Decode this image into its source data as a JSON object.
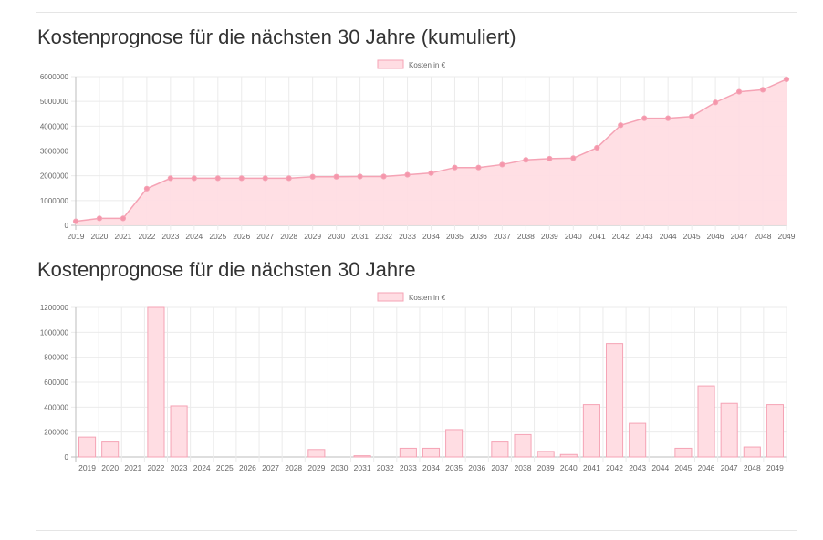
{
  "charts": [
    {
      "title": "Kostenprognose für die nächsten 30 Jahre (kumuliert)",
      "legend_label": "Kosten in €"
    },
    {
      "title": "Kostenprognose für die nächsten 30 Jahre",
      "legend_label": "Kosten in €"
    }
  ],
  "colors": {
    "fill": "#ffdde3",
    "stroke": "#f5a3b5",
    "point": "#f596ab",
    "grid": "#ebebeb",
    "axis": "#bdbdbd",
    "text": "#666666"
  },
  "chart_data": [
    {
      "type": "area",
      "title": "Kostenprognose für die nächsten 30 Jahre (kumuliert)",
      "xlabel": "",
      "ylabel": "",
      "legend": "top-center",
      "grid": true,
      "ylim": [
        0,
        6000000
      ],
      "yticks": [
        0,
        1000000,
        2000000,
        3000000,
        4000000,
        5000000,
        6000000
      ],
      "categories": [
        "2019",
        "2020",
        "2021",
        "2022",
        "2023",
        "2024",
        "2025",
        "2026",
        "2027",
        "2028",
        "2029",
        "2030",
        "2031",
        "2032",
        "2033",
        "2034",
        "2035",
        "2036",
        "2037",
        "2038",
        "2039",
        "2040",
        "2041",
        "2042",
        "2043",
        "2044",
        "2045",
        "2046",
        "2047",
        "2048",
        "2049"
      ],
      "series": [
        {
          "name": "Kosten in €",
          "values": [
            160000,
            280000,
            280000,
            1480000,
            1900000,
            1900000,
            1900000,
            1900000,
            1900000,
            1900000,
            1960000,
            1960000,
            1970000,
            1970000,
            2040000,
            2110000,
            2330000,
            2330000,
            2450000,
            2640000,
            2690000,
            2710000,
            3130000,
            4040000,
            4320000,
            4320000,
            4390000,
            4960000,
            5390000,
            5470000,
            5890000
          ]
        }
      ]
    },
    {
      "type": "bar",
      "title": "Kostenprognose für die nächsten 30 Jahre",
      "xlabel": "",
      "ylabel": "",
      "legend": "top-center",
      "grid": true,
      "ylim": [
        0,
        1200000
      ],
      "yticks": [
        0,
        200000,
        400000,
        600000,
        800000,
        1000000,
        1200000
      ],
      "categories": [
        "2019",
        "2020",
        "2021",
        "2022",
        "2023",
        "2024",
        "2025",
        "2026",
        "2027",
        "2028",
        "2029",
        "2030",
        "2031",
        "2032",
        "2033",
        "2034",
        "2035",
        "2036",
        "2037",
        "2038",
        "2039",
        "2040",
        "2041",
        "2042",
        "2043",
        "2044",
        "2045",
        "2046",
        "2047",
        "2048",
        "2049"
      ],
      "series": [
        {
          "name": "Kosten in €",
          "values": [
            160000,
            120000,
            0,
            1200000,
            410000,
            0,
            0,
            0,
            0,
            0,
            60000,
            0,
            10000,
            0,
            70000,
            70000,
            220000,
            0,
            120000,
            180000,
            45000,
            20000,
            420000,
            910000,
            270000,
            0,
            70000,
            570000,
            430000,
            80000,
            420000
          ]
        }
      ]
    }
  ]
}
